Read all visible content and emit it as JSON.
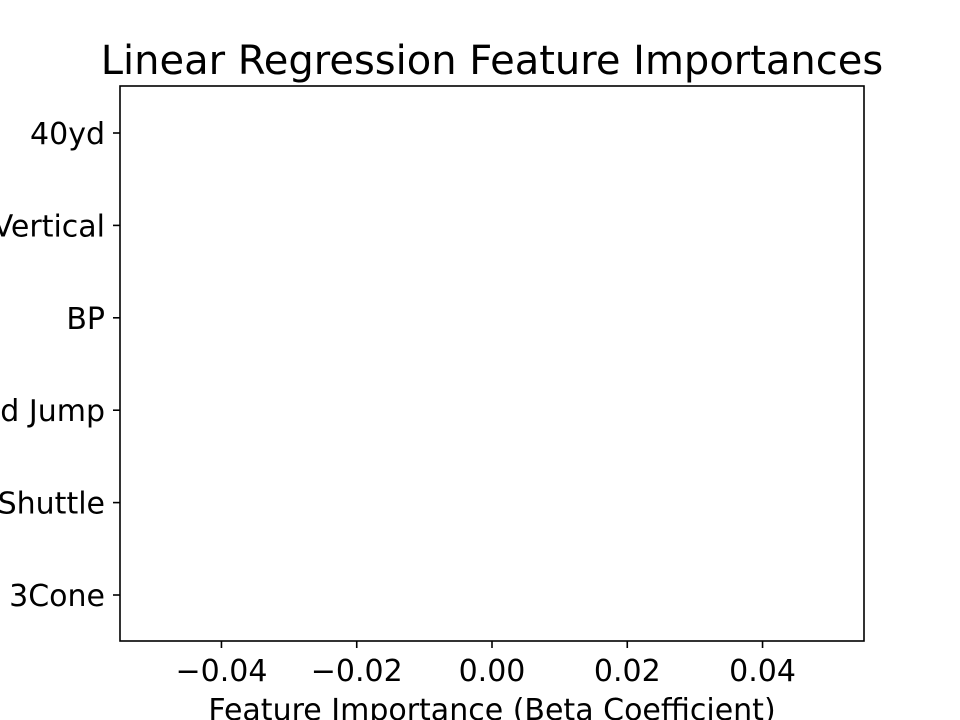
{
  "chart_data": {
    "type": "bar",
    "orientation": "horizontal",
    "title": "Linear Regression Feature Importances",
    "xlabel": "Feature Importance (Beta Coefficient)",
    "ylabel": "",
    "categories": [
      "40yd",
      "Vertical",
      "BP",
      "Broad Jump",
      "Shuttle",
      "3Cone"
    ],
    "values": [
      0,
      0,
      0,
      0,
      0,
      0
    ],
    "xlim": [
      -0.055,
      0.055
    ],
    "xticks": [
      -0.04,
      -0.02,
      0.0,
      0.02,
      0.04
    ],
    "xtick_labels": [
      "−0.04",
      "−0.02",
      "0.00",
      "0.02",
      "0.04"
    ],
    "grid": false,
    "legend": "none"
  }
}
